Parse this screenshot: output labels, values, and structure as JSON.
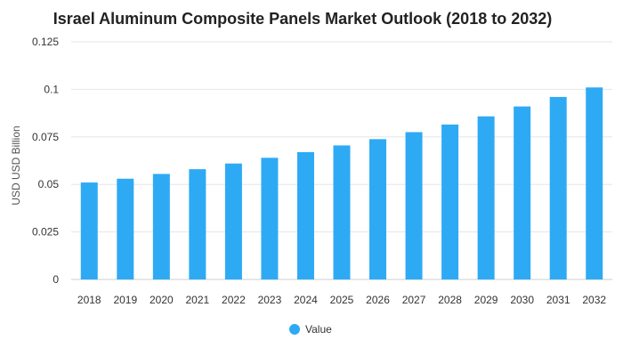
{
  "chart_data": {
    "type": "bar",
    "title": "Israel Aluminum Composite Panels Market Outlook (2018 to 2032)",
    "xlabel": "",
    "ylabel": "USD USD Billion",
    "ylim": [
      0,
      0.125
    ],
    "yticks": [
      0,
      0.025,
      0.05,
      0.075,
      0.1,
      0.125
    ],
    "ytick_labels": [
      "0",
      "0.025",
      "0.05",
      "0.075",
      "0.1",
      "0.125"
    ],
    "categories": [
      "2018",
      "2019",
      "2020",
      "2021",
      "2022",
      "2023",
      "2024",
      "2025",
      "2026",
      "2027",
      "2028",
      "2029",
      "2030",
      "2031",
      "2032"
    ],
    "series": [
      {
        "name": "Value",
        "color": "#2eaaf5",
        "values": [
          0.051,
          0.053,
          0.0555,
          0.058,
          0.061,
          0.064,
          0.067,
          0.0705,
          0.0738,
          0.0775,
          0.0815,
          0.0858,
          0.091,
          0.096,
          0.101
        ]
      }
    ],
    "grid": true,
    "legend": "bottom-center"
  }
}
